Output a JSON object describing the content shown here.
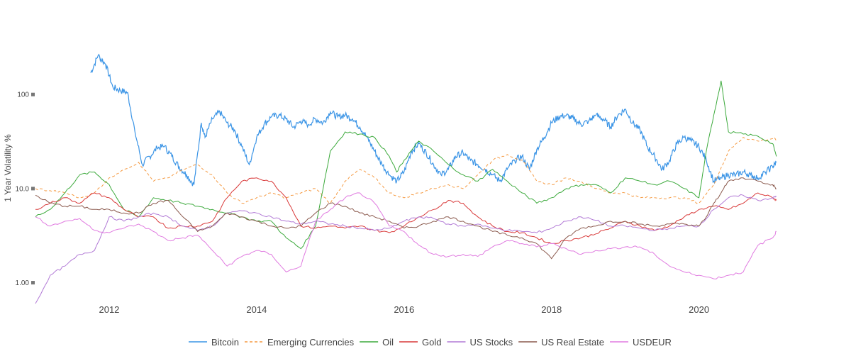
{
  "chart_data": {
    "type": "line",
    "title": "",
    "xlabel": "",
    "ylabel": "1 Year Volatility %",
    "yscale": "log",
    "ylim": [
      0.6,
      600
    ],
    "xlim": [
      2011.0,
      2021.1
    ],
    "grid": false,
    "legend_position": "bottom",
    "x_ticks": [
      {
        "value": 2012,
        "label": "2012"
      },
      {
        "value": 2014,
        "label": "2014"
      },
      {
        "value": 2016,
        "label": "2016"
      },
      {
        "value": 2018,
        "label": "2018"
      },
      {
        "value": 2020,
        "label": "2020"
      }
    ],
    "y_ticks": [
      {
        "value": 1,
        "label": "1.00"
      },
      {
        "value": 10,
        "label": "10.0"
      },
      {
        "value": 100,
        "label": "100"
      }
    ],
    "series": [
      {
        "name": "Bitcoin",
        "color": "#3c95e6",
        "dash": "solid",
        "x": [
          2011.75,
          2011.85,
          2011.95,
          2012.05,
          2012.15,
          2012.25,
          2012.35,
          2012.45,
          2012.55,
          2012.65,
          2012.75,
          2012.85,
          2012.95,
          2013.05,
          2013.15,
          2013.25,
          2013.3,
          2013.4,
          2013.5,
          2013.6,
          2013.7,
          2013.8,
          2013.9,
          2014.0,
          2014.1,
          2014.2,
          2014.3,
          2014.4,
          2014.5,
          2014.6,
          2014.7,
          2014.8,
          2014.9,
          2015.0,
          2015.1,
          2015.2,
          2015.3,
          2015.4,
          2015.5,
          2015.6,
          2015.7,
          2015.8,
          2015.9,
          2016.0,
          2016.1,
          2016.2,
          2016.3,
          2016.4,
          2016.5,
          2016.6,
          2016.7,
          2016.8,
          2016.9,
          2017.0,
          2017.1,
          2017.2,
          2017.3,
          2017.4,
          2017.5,
          2017.6,
          2017.7,
          2017.8,
          2017.9,
          2018.0,
          2018.1,
          2018.2,
          2018.3,
          2018.4,
          2018.5,
          2018.6,
          2018.7,
          2018.8,
          2018.9,
          2019.0,
          2019.1,
          2019.2,
          2019.3,
          2019.4,
          2019.5,
          2019.6,
          2019.7,
          2019.8,
          2019.9,
          2020.0,
          2020.1,
          2020.2,
          2020.3,
          2020.4,
          2020.5,
          2020.6,
          2020.7,
          2020.8,
          2020.9,
          2021.0,
          2021.05
        ],
        "y": [
          170,
          260,
          210,
          120,
          110,
          105,
          40,
          18,
          22,
          27,
          28,
          22,
          17,
          14,
          11,
          50,
          35,
          55,
          65,
          50,
          42,
          28,
          18,
          35,
          48,
          58,
          60,
          55,
          45,
          52,
          48,
          55,
          50,
          65,
          58,
          60,
          55,
          45,
          35,
          25,
          18,
          14,
          12,
          15,
          25,
          30,
          24,
          18,
          14,
          16,
          22,
          24,
          20,
          18,
          16,
          14,
          12,
          16,
          20,
          22,
          16,
          26,
          35,
          50,
          58,
          60,
          55,
          48,
          52,
          60,
          55,
          45,
          60,
          70,
          50,
          42,
          28,
          22,
          16,
          20,
          30,
          35,
          32,
          28,
          20,
          12,
          13,
          14,
          14,
          15,
          14,
          13,
          15,
          17,
          19
        ]
      },
      {
        "name": "Emerging Currencies",
        "color": "#f59a42",
        "dash": "4,3",
        "x": [
          2011.0,
          2011.2,
          2011.4,
          2011.6,
          2011.8,
          2012.0,
          2012.2,
          2012.4,
          2012.6,
          2012.8,
          2013.0,
          2013.2,
          2013.4,
          2013.6,
          2013.8,
          2014.0,
          2014.2,
          2014.4,
          2014.6,
          2014.8,
          2015.0,
          2015.2,
          2015.4,
          2015.6,
          2015.8,
          2016.0,
          2016.2,
          2016.4,
          2016.6,
          2016.8,
          2017.0,
          2017.2,
          2017.4,
          2017.6,
          2017.8,
          2018.0,
          2018.2,
          2018.4,
          2018.6,
          2018.8,
          2019.0,
          2019.2,
          2019.4,
          2019.6,
          2019.8,
          2020.0,
          2020.2,
          2020.4,
          2020.6,
          2020.8,
          2021.0,
          2021.05
        ],
        "y": [
          10,
          9.5,
          9,
          8,
          9,
          13,
          16,
          19,
          12,
          13,
          16,
          18,
          14,
          9,
          7,
          8,
          9,
          8,
          9,
          10,
          7,
          12,
          16,
          13,
          9,
          8,
          9,
          10,
          11,
          10,
          14,
          20,
          23,
          20,
          12,
          11,
          13,
          12,
          10,
          9,
          9,
          8,
          8,
          8,
          8,
          7,
          11,
          25,
          35,
          32,
          34,
          33
        ]
      },
      {
        "name": "Oil",
        "color": "#3daa3d",
        "dash": "solid",
        "x": [
          2011.0,
          2011.2,
          2011.4,
          2011.6,
          2011.8,
          2012.0,
          2012.2,
          2012.4,
          2012.6,
          2012.8,
          2013.0,
          2013.2,
          2013.4,
          2013.6,
          2013.8,
          2014.0,
          2014.2,
          2014.4,
          2014.6,
          2014.8,
          2015.0,
          2015.2,
          2015.4,
          2015.6,
          2015.8,
          2015.9,
          2016.0,
          2016.2,
          2016.4,
          2016.6,
          2016.8,
          2017.0,
          2017.2,
          2017.4,
          2017.6,
          2017.8,
          2018.0,
          2018.2,
          2018.4,
          2018.6,
          2018.8,
          2019.0,
          2019.2,
          2019.4,
          2019.6,
          2019.8,
          2020.0,
          2020.1,
          2020.2,
          2020.3,
          2020.4,
          2020.6,
          2020.8,
          2021.0,
          2021.05
        ],
        "y": [
          5,
          6,
          9,
          14,
          15,
          11,
          6,
          5,
          8,
          7.5,
          7,
          6.5,
          6,
          5.5,
          5,
          4.5,
          4.5,
          3,
          2.3,
          4,
          25,
          40,
          38,
          35,
          22,
          15,
          20,
          32,
          25,
          18,
          14,
          12,
          16,
          12,
          9,
          7,
          8,
          10,
          11,
          11,
          9,
          13,
          12,
          11,
          12,
          10,
          8,
          25,
          60,
          140,
          40,
          38,
          36,
          30,
          22
        ]
      },
      {
        "name": "Gold",
        "color": "#d93a3a",
        "dash": "solid",
        "x": [
          2011.0,
          2011.2,
          2011.4,
          2011.6,
          2011.8,
          2012.0,
          2012.2,
          2012.4,
          2012.6,
          2012.8,
          2013.0,
          2013.2,
          2013.4,
          2013.6,
          2013.8,
          2014.0,
          2014.2,
          2014.4,
          2014.6,
          2014.8,
          2015.0,
          2015.2,
          2015.4,
          2015.6,
          2015.8,
          2016.0,
          2016.2,
          2016.4,
          2016.6,
          2016.8,
          2017.0,
          2017.2,
          2017.4,
          2017.6,
          2017.8,
          2018.0,
          2018.2,
          2018.4,
          2018.6,
          2018.8,
          2019.0,
          2019.2,
          2019.4,
          2019.6,
          2019.8,
          2020.0,
          2020.2,
          2020.4,
          2020.6,
          2020.8,
          2021.0,
          2021.05
        ],
        "y": [
          6,
          7,
          8,
          7,
          9,
          8,
          6,
          5,
          5,
          3.8,
          4,
          4,
          4.5,
          8,
          12,
          13,
          12,
          8,
          4,
          3.8,
          4,
          3.8,
          4,
          3.6,
          3.4,
          4,
          5,
          6,
          7.5,
          7,
          5,
          4,
          3.5,
          3.4,
          3,
          2.6,
          2.8,
          3,
          3.3,
          3.8,
          4.5,
          4,
          3.6,
          4,
          5,
          6,
          6.5,
          6,
          7,
          9,
          8,
          7.5
        ]
      },
      {
        "name": "US Stocks",
        "color": "#b27ad6",
        "dash": "solid",
        "x": [
          2011.0,
          2011.2,
          2011.4,
          2011.6,
          2011.8,
          2012.0,
          2012.2,
          2012.4,
          2012.6,
          2012.8,
          2013.0,
          2013.2,
          2013.4,
          2013.6,
          2013.8,
          2014.0,
          2014.2,
          2014.4,
          2014.6,
          2014.8,
          2015.0,
          2015.2,
          2015.4,
          2015.6,
          2015.8,
          2016.0,
          2016.2,
          2016.4,
          2016.6,
          2016.8,
          2017.0,
          2017.2,
          2017.4,
          2017.6,
          2017.8,
          2018.0,
          2018.2,
          2018.4,
          2018.6,
          2018.8,
          2019.0,
          2019.2,
          2019.4,
          2019.6,
          2019.8,
          2020.0,
          2020.2,
          2020.4,
          2020.6,
          2020.8,
          2021.0,
          2021.05
        ],
        "y": [
          0.6,
          1.2,
          1.5,
          2.0,
          2.2,
          5,
          4.5,
          5,
          5.5,
          5,
          4,
          3.6,
          4,
          5.5,
          5.8,
          5.5,
          5,
          4.5,
          4.2,
          4.5,
          4.2,
          4,
          3.8,
          3.6,
          3.8,
          4.5,
          5,
          4.8,
          4.2,
          4,
          4.2,
          3.8,
          3.6,
          3.5,
          3.4,
          3.8,
          4.5,
          5,
          4.6,
          4,
          4,
          3.8,
          3.6,
          3.8,
          4,
          4,
          6,
          8,
          8.5,
          7.5,
          8,
          8.2
        ]
      },
      {
        "name": "US Real Estate",
        "color": "#8b5a4e",
        "dash": "solid",
        "x": [
          2011.0,
          2011.2,
          2011.4,
          2011.6,
          2011.8,
          2012.0,
          2012.2,
          2012.4,
          2012.6,
          2012.8,
          2013.0,
          2013.2,
          2013.4,
          2013.6,
          2013.8,
          2014.0,
          2014.2,
          2014.4,
          2014.6,
          2014.8,
          2015.0,
          2015.2,
          2015.4,
          2015.6,
          2015.8,
          2016.0,
          2016.2,
          2016.4,
          2016.6,
          2016.8,
          2017.0,
          2017.2,
          2017.4,
          2017.6,
          2017.8,
          2018.0,
          2018.2,
          2018.4,
          2018.6,
          2018.8,
          2019.0,
          2019.2,
          2019.4,
          2019.6,
          2019.8,
          2020.0,
          2020.1,
          2020.2,
          2020.3,
          2020.4,
          2020.6,
          2020.8,
          2021.0,
          2021.05
        ],
        "y": [
          8.5,
          7,
          6.5,
          6.5,
          6,
          6,
          5.5,
          5.5,
          7,
          7.5,
          5,
          3.5,
          4,
          5.5,
          5,
          4.5,
          4,
          3.8,
          4,
          5.5,
          7,
          6.5,
          5.5,
          5,
          4.5,
          3.8,
          4,
          4.5,
          5,
          4.5,
          4,
          3.5,
          3.2,
          3,
          2.6,
          1.8,
          3,
          3.8,
          4,
          4.5,
          4.5,
          4.2,
          4,
          4.2,
          4.2,
          4,
          5,
          7,
          9,
          12,
          13,
          12,
          11,
          10
        ]
      },
      {
        "name": "USDEUR",
        "color": "#e07be0",
        "dash": "solid",
        "x": [
          2011.0,
          2011.2,
          2011.4,
          2011.6,
          2011.8,
          2012.0,
          2012.2,
          2012.4,
          2012.6,
          2012.8,
          2013.0,
          2013.2,
          2013.4,
          2013.6,
          2013.8,
          2014.0,
          2014.2,
          2014.4,
          2014.6,
          2014.8,
          2015.0,
          2015.2,
          2015.4,
          2015.6,
          2015.8,
          2016.0,
          2016.2,
          2016.4,
          2016.6,
          2016.8,
          2017.0,
          2017.2,
          2017.4,
          2017.6,
          2017.8,
          2018.0,
          2018.2,
          2018.4,
          2018.6,
          2018.8,
          2019.0,
          2019.2,
          2019.4,
          2019.6,
          2019.8,
          2020.0,
          2020.2,
          2020.4,
          2020.6,
          2020.8,
          2021.0,
          2021.05
        ],
        "y": [
          5,
          4,
          4.5,
          4.8,
          3.6,
          3.4,
          3.8,
          4.2,
          3.5,
          2.8,
          3,
          3.2,
          2.2,
          1.5,
          1.9,
          2.2,
          2,
          1.3,
          1.5,
          4.5,
          6,
          8,
          9,
          7,
          4,
          3.5,
          2.5,
          2,
          1.9,
          2,
          1.9,
          2.4,
          2.8,
          2.6,
          2.4,
          2.6,
          2.3,
          2,
          2.2,
          2.3,
          2.4,
          2.4,
          2,
          1.5,
          1.3,
          1.2,
          1.1,
          1.2,
          1.3,
          2.5,
          3,
          3.5
        ]
      }
    ]
  }
}
